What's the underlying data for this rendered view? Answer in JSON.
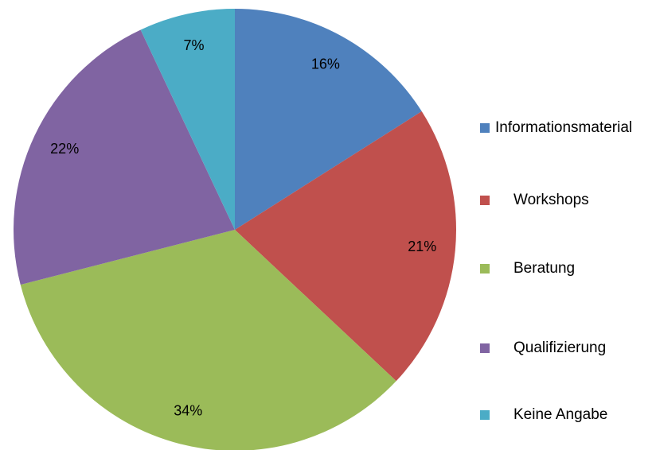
{
  "chart_data": {
    "type": "pie",
    "categories": [
      "Informationsmaterial",
      "Workshops",
      "Beratung",
      "Qualifizierung",
      "Keine Angabe"
    ],
    "values": [
      16,
      21,
      34,
      22,
      7
    ],
    "value_labels": [
      "16%",
      "21%",
      "34%",
      "22%",
      "7%"
    ],
    "colors": [
      "#4f81bd",
      "#c0504d",
      "#9bbb59",
      "#8064a2",
      "#4bacc6"
    ],
    "legend": "right"
  }
}
